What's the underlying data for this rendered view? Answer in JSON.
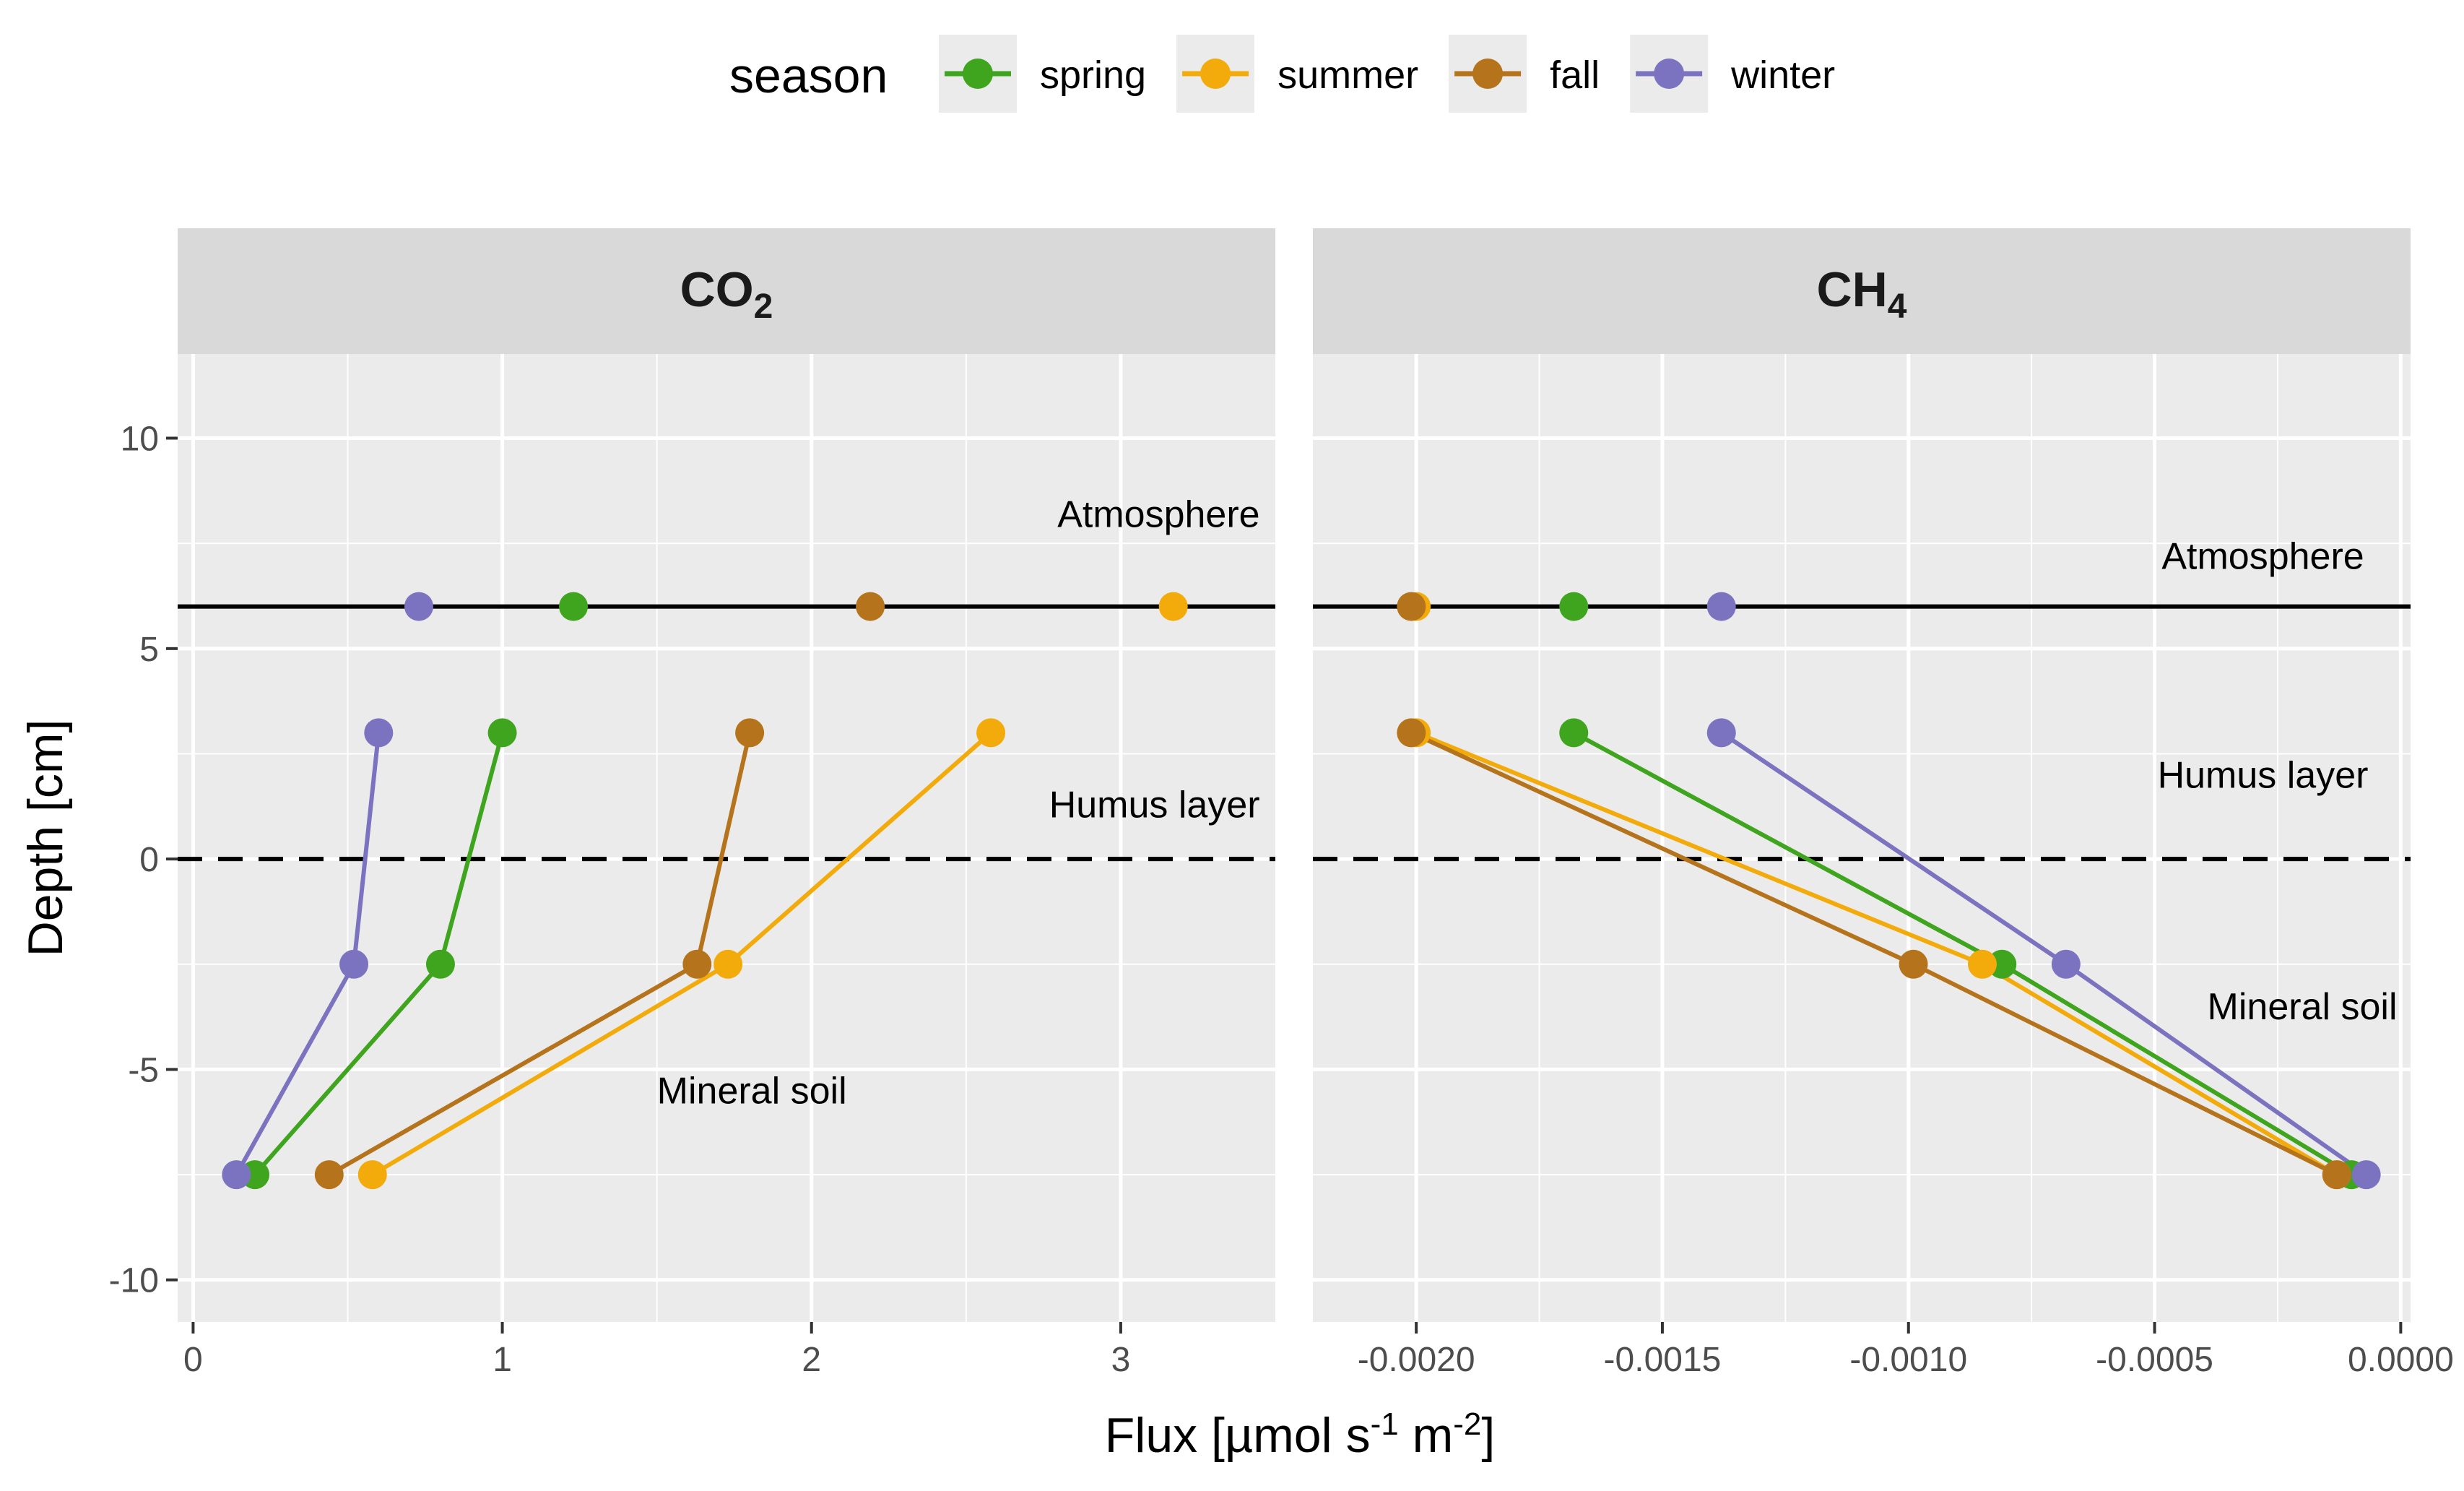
{
  "chart_data": {
    "type": "line",
    "legend": {
      "title": "season",
      "placement": "top"
    },
    "seasons": [
      {
        "name": "spring",
        "color": "#3fa51f"
      },
      {
        "name": "summer",
        "color": "#f2ab0a"
      },
      {
        "name": "fall",
        "color": "#b5741c"
      },
      {
        "name": "winter",
        "color": "#7b73bf"
      }
    ],
    "xlabel": {
      "main": "Flux  [µmol s",
      "sup1": "-1",
      "mid": " m",
      "sup2": "-2",
      "end": "]"
    },
    "ylabel": "Depth  [cm]",
    "ylim": [
      -11,
      12
    ],
    "y_ticks": [
      10,
      5,
      0,
      -5,
      -10
    ],
    "y_tick_labels": [
      "10",
      "5",
      "0",
      "-5",
      "-10"
    ],
    "reference_lines": [
      {
        "y": 6,
        "style": "solid"
      },
      {
        "y": 0,
        "style": "dashed"
      }
    ],
    "grid": true,
    "panels": [
      {
        "strip": {
          "main": "CO",
          "sub": "2"
        },
        "xlim": [
          -0.05,
          3.5
        ],
        "x_ticks": [
          0,
          1,
          2,
          3
        ],
        "x_tick_labels": [
          "0",
          "1",
          "2",
          "3"
        ],
        "annotations": [
          {
            "text": "Atmosphere",
            "x": 3.45,
            "y": 8.2,
            "anchor": "end"
          },
          {
            "text": "Humus layer",
            "x": 3.45,
            "y": 1.3,
            "anchor": "end"
          },
          {
            "text": "Mineral soil",
            "x": 1.5,
            "y": -5.5,
            "anchor": "start"
          }
        ],
        "atmosphere": {
          "y": 6,
          "spring": 1.23,
          "summer": 3.17,
          "fall": 2.19,
          "winter": 0.73
        },
        "series": [
          {
            "name": "spring",
            "x": [
              1.0,
              0.8,
              0.2
            ],
            "y": [
              3,
              -2.5,
              -7.5
            ]
          },
          {
            "name": "summer",
            "x": [
              2.58,
              1.73,
              0.58
            ],
            "y": [
              3,
              -2.5,
              -7.5
            ]
          },
          {
            "name": "fall",
            "x": [
              1.8,
              1.63,
              0.44
            ],
            "y": [
              3,
              -2.5,
              -7.5
            ]
          },
          {
            "name": "winter",
            "x": [
              0.6,
              0.52,
              0.14
            ],
            "y": [
              3,
              -2.5,
              -7.5
            ]
          }
        ]
      },
      {
        "strip": {
          "main": "CH",
          "sub": "4"
        },
        "xlim": [
          -0.00221,
          2e-05
        ],
        "x_ticks": [
          -0.002,
          -0.0015,
          -0.001,
          -0.0005,
          0
        ],
        "x_tick_labels": [
          "-0.0020",
          "-0.0015",
          "-0.0010",
          "-0.0005",
          "0.0000"
        ],
        "annotations": [
          {
            "text": "Atmosphere",
            "x": -0.00028,
            "y": 7.2,
            "anchor": "middle"
          },
          {
            "text": "Humus layer",
            "x": -0.00028,
            "y": 2.0,
            "anchor": "middle"
          },
          {
            "text": "Mineral soil",
            "x": -0.0002,
            "y": -3.5,
            "anchor": "middle"
          }
        ],
        "atmosphere": {
          "y": 6,
          "spring": -0.00168,
          "summer": -0.002,
          "fall": -0.00201,
          "winter": -0.00138
        },
        "series": [
          {
            "name": "spring",
            "x": [
              -0.00168,
              -0.00081,
              -0.0001
            ],
            "y": [
              3,
              -2.5,
              -7.5
            ]
          },
          {
            "name": "summer",
            "x": [
              -0.002,
              -0.00085,
              -0.00013
            ],
            "y": [
              3,
              -2.5,
              -7.5
            ]
          },
          {
            "name": "fall",
            "x": [
              -0.00201,
              -0.00099,
              -0.00013
            ],
            "y": [
              3,
              -2.5,
              -7.5
            ]
          },
          {
            "name": "winter",
            "x": [
              -0.00138,
              -0.00068,
              -7e-05
            ],
            "y": [
              3,
              -2.5,
              -7.5
            ]
          }
        ]
      }
    ]
  }
}
